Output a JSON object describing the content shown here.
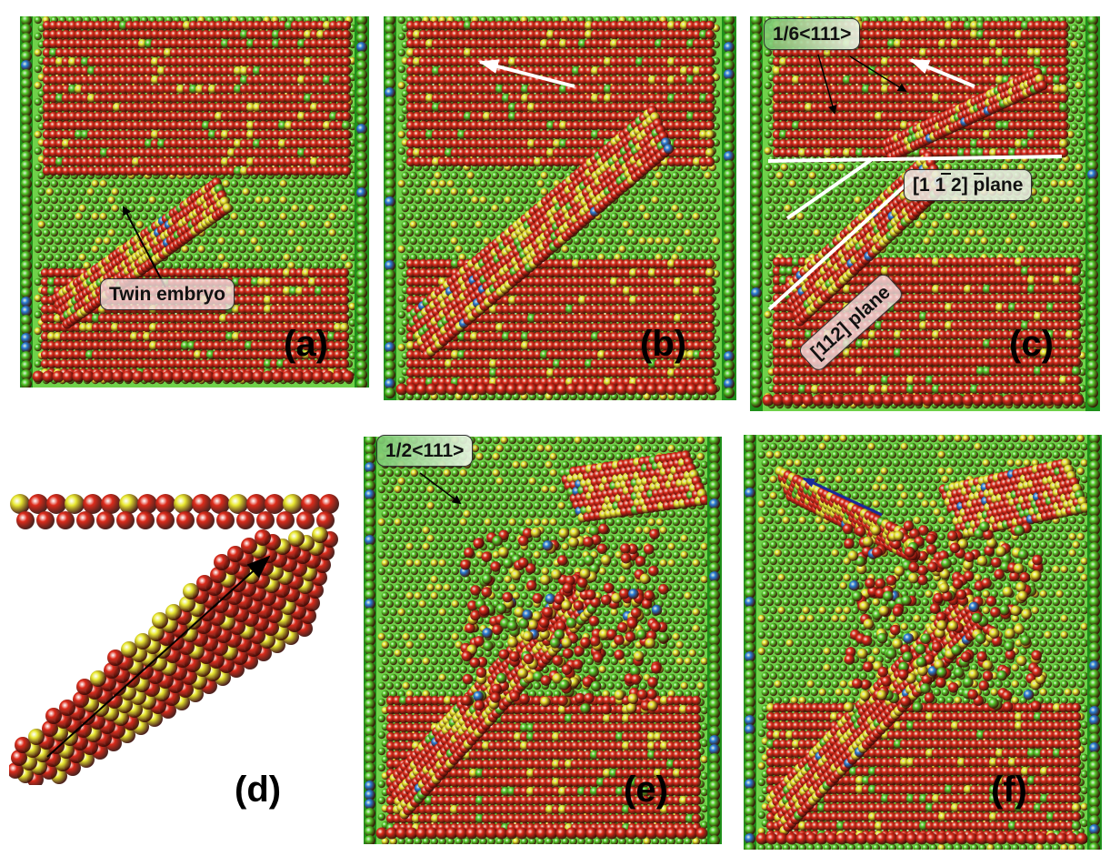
{
  "figure": {
    "panels": [
      {
        "id": "a",
        "label": "(a)"
      },
      {
        "id": "b",
        "label": "(b)"
      },
      {
        "id": "c",
        "label": "(c)"
      },
      {
        "id": "d",
        "label": "(d)"
      },
      {
        "id": "e",
        "label": "(e)"
      },
      {
        "id": "f",
        "label": "(f)"
      }
    ],
    "annotations": {
      "twin_embryo": "Twin embryo",
      "burgers_partial": "1/6<111>",
      "plane_1": "[1 1 2] plane",
      "plane_2": "[112] plane",
      "burgers_full": "1/2<111>"
    },
    "colors": {
      "atom_red": "#dd2c1c",
      "atom_green": "#52cc2a",
      "atom_yellow": "#e8e830",
      "atom_blue": "#2a7fd8",
      "frame_green": "#1f8f1a",
      "white_arrow": "#ffffff",
      "black_arrow": "#000000",
      "blue_arrow": "#1a2a9a"
    }
  }
}
